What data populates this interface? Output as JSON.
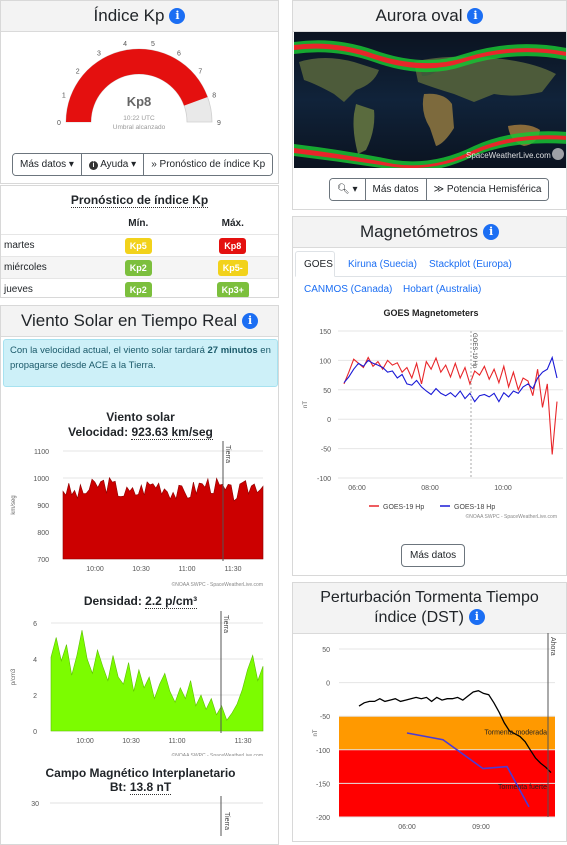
{
  "kp": {
    "title": "Índice Kp",
    "gauge_ticks": [
      "0",
      "1",
      "2",
      "3",
      "4",
      "5",
      "6",
      "7",
      "8",
      "9"
    ],
    "value_label": "Kp8",
    "time": "10:22 UTC",
    "status": "Umbral alcanzado",
    "value": 8,
    "buttons": [
      "Más datos",
      "Ayuda",
      "Pronóstico de índice Kp"
    ]
  },
  "forecast": {
    "title": "Pronóstico de índice Kp",
    "col_min": "Mín.",
    "col_max": "Máx.",
    "rows": [
      {
        "day": "martes",
        "min": "Kp5",
        "max": "Kp8",
        "min_color": "#f2d21b",
        "max_color": "#e4100f"
      },
      {
        "day": "miércoles",
        "min": "Kp2",
        "max": "Kp5-",
        "min_color": "#7cbf3d",
        "max_color": "#f2d21b"
      },
      {
        "day": "jueves",
        "min": "Kp2",
        "max": "Kp3+",
        "min_color": "#7cbf3d",
        "max_color": "#7cbf3d"
      }
    ]
  },
  "solar_wind": {
    "title": "Viento Solar en Tiempo Real",
    "alert_prefix": "Con la velocidad actual, el viento solar tardará ",
    "alert_bold": "27 minutos",
    "alert_suffix": " en propagarse desde ACE a la Tierra.",
    "speed_title": "Viento solar",
    "speed_label": "Velocidad: ",
    "speed_value": "923.63 km/seg",
    "speed_yticks": [
      "1100",
      "1000",
      "900",
      "800",
      "700"
    ],
    "speed_ylabel": "km/seg",
    "xticks": [
      "10:00",
      "10:30",
      "11:00",
      "11:30"
    ],
    "marker": "Tierra",
    "credit": "©NOAA SWPC - SpaceWeatherLive.com",
    "density_label": "Densidad: ",
    "density_value": "2.2 p/cm³",
    "density_yticks": [
      "6",
      "4",
      "2",
      "0"
    ],
    "density_ylabel": "p/cm3",
    "imf_title": "Campo Magnético Interplanetario",
    "bt_label": "Bt: ",
    "bt_value": "13.8 nT",
    "bt_ytick": "30"
  },
  "aurora": {
    "title": "Aurora oval",
    "watermark": "SpaceWeatherLive.com",
    "buttons": [
      "Más datos",
      "Potencia Hemisférica"
    ]
  },
  "magnetometers": {
    "title": "Magnetómetros",
    "tabs": [
      "GOES",
      "Kiruna (Suecia)",
      "Stackplot (Europa)",
      "CANMOS (Canada)",
      "Hobart (Australia)"
    ],
    "chart_title": "GOES Magnetometers",
    "yticks": [
      "150",
      "100",
      "50",
      "0",
      "-50",
      "-100"
    ],
    "ylabel": "nT",
    "xticks": [
      "06:00",
      "08:00",
      "10:00"
    ],
    "vline_label": "GOES-19 Hp",
    "legend": [
      "GOES-19 Hp",
      "GOES-18 Hp"
    ],
    "colors": [
      "#e8262a",
      "#1a1ad6"
    ],
    "credit": "©NOAA SWPC - SpaceWeatherLive.com",
    "more_button": "Más datos"
  },
  "dst": {
    "title": "Perturbación Tormenta Tiempo índice (DST)",
    "yticks": [
      "50",
      "0",
      "-50",
      "-100",
      "-150",
      "-200"
    ],
    "ylabel": "nT",
    "xticks": [
      "06:00",
      "09:00"
    ],
    "zone_moderate": "Tormenta moderada",
    "zone_strong": "Tormenta fuerte",
    "marker": "Ahora"
  }
}
